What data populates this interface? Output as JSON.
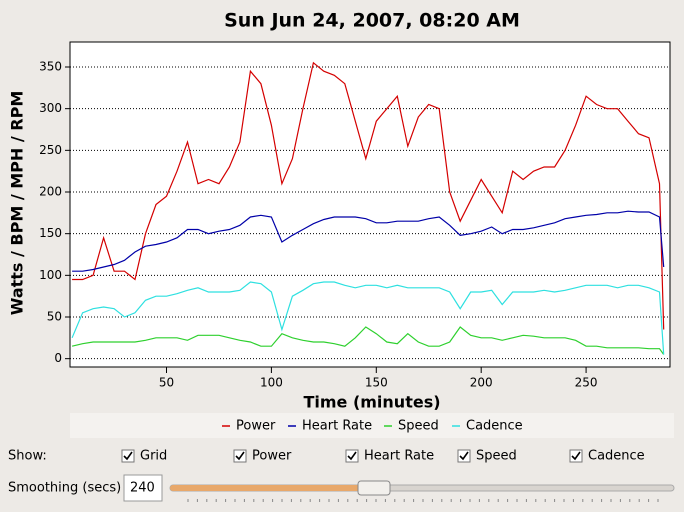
{
  "chart_data": {
    "type": "line",
    "title": "Sun Jun 24, 2007, 08:20 AM",
    "x_label": "Time (minutes)",
    "y_label": "Watts / BPM / MPH / RPM",
    "x": [
      5,
      10,
      15,
      20,
      25,
      30,
      35,
      40,
      45,
      50,
      55,
      60,
      65,
      70,
      75,
      80,
      85,
      90,
      95,
      100,
      105,
      110,
      115,
      120,
      125,
      130,
      135,
      140,
      145,
      150,
      155,
      160,
      165,
      170,
      175,
      180,
      185,
      190,
      195,
      200,
      205,
      210,
      215,
      220,
      225,
      230,
      235,
      240,
      245,
      250,
      255,
      260,
      265,
      270,
      275,
      280,
      285,
      287
    ],
    "series": [
      {
        "name": "Power",
        "color": "#d40000",
        "values": [
          95,
          95,
          100,
          145,
          105,
          105,
          95,
          150,
          185,
          195,
          225,
          260,
          210,
          215,
          210,
          230,
          260,
          345,
          330,
          280,
          210,
          240,
          300,
          355,
          345,
          340,
          330,
          285,
          240,
          285,
          300,
          315,
          255,
          290,
          305,
          300,
          200,
          165,
          190,
          215,
          195,
          175,
          225,
          215,
          225,
          230,
          230,
          250,
          280,
          315,
          305,
          300,
          300,
          285,
          270,
          265,
          210,
          35
        ]
      },
      {
        "name": "Heart Rate",
        "color": "#0000a8",
        "values": [
          105,
          105,
          107,
          110,
          113,
          118,
          128,
          135,
          137,
          140,
          145,
          155,
          155,
          150,
          153,
          155,
          160,
          170,
          172,
          170,
          140,
          148,
          155,
          162,
          167,
          170,
          170,
          170,
          168,
          163,
          163,
          165,
          165,
          165,
          168,
          170,
          160,
          148,
          150,
          153,
          158,
          150,
          155,
          155,
          157,
          160,
          163,
          168,
          170,
          172,
          173,
          175,
          175,
          177,
          176,
          176,
          170,
          110
        ]
      },
      {
        "name": "Speed",
        "color": "#2ed02e",
        "values": [
          15,
          18,
          20,
          20,
          20,
          20,
          20,
          22,
          25,
          25,
          25,
          22,
          28,
          28,
          28,
          25,
          22,
          20,
          15,
          15,
          30,
          25,
          22,
          20,
          20,
          18,
          15,
          25,
          38,
          30,
          20,
          18,
          30,
          20,
          15,
          15,
          20,
          38,
          28,
          25,
          25,
          22,
          25,
          28,
          27,
          25,
          25,
          25,
          22,
          15,
          15,
          13,
          13,
          13,
          13,
          12,
          12,
          5
        ]
      },
      {
        "name": "Cadence",
        "color": "#2ee0e0",
        "values": [
          25,
          55,
          60,
          62,
          60,
          50,
          55,
          70,
          75,
          75,
          78,
          82,
          85,
          80,
          80,
          80,
          82,
          92,
          90,
          80,
          35,
          75,
          82,
          90,
          92,
          92,
          88,
          85,
          88,
          88,
          85,
          88,
          85,
          85,
          85,
          85,
          80,
          60,
          80,
          80,
          82,
          65,
          80,
          80,
          80,
          82,
          80,
          82,
          85,
          88,
          88,
          88,
          85,
          88,
          88,
          85,
          80,
          5
        ]
      }
    ],
    "xlim": [
      4,
      290
    ],
    "xticks": [
      50,
      100,
      150,
      200,
      250
    ],
    "ylim": [
      -10,
      380
    ],
    "yticks": [
      0,
      50,
      100,
      150,
      200,
      250,
      300,
      350
    ],
    "grid": true,
    "legend": "bottom"
  },
  "controls": {
    "show_label": "Show:",
    "checkboxes": [
      {
        "label": "Grid",
        "checked": true
      },
      {
        "label": "Power",
        "checked": true
      },
      {
        "label": "Heart Rate",
        "checked": true
      },
      {
        "label": "Speed",
        "checked": true
      },
      {
        "label": "Cadence",
        "checked": true
      }
    ],
    "smoothing_label": "Smoothing (secs)",
    "smoothing_value": "240"
  }
}
